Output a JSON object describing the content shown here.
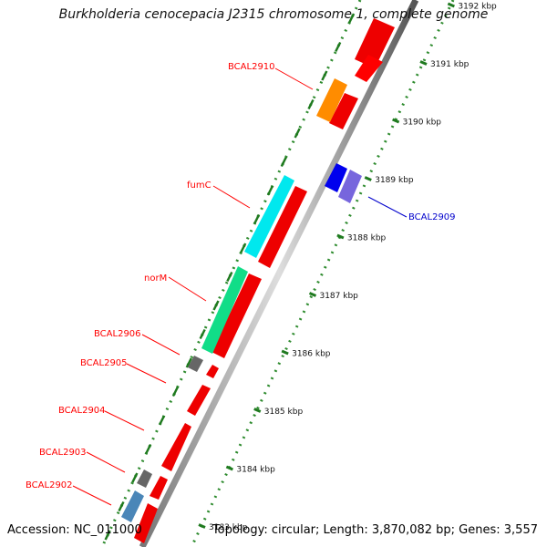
{
  "title": "Burkholderia cenocepacia J2315 chromosome 1, complete genome",
  "footer": {
    "accession": "Accession: NC_011000",
    "summary": "Topology: circular; Length: 3,870,082 bp; Genes: 3,557"
  },
  "ticks": [
    "3183 kbp",
    "3184 kbp",
    "3185 kbp",
    "3186 kbp",
    "3187 kbp",
    "3188 kbp",
    "3189 kbp",
    "3190 kbp",
    "3191 kbp",
    "3192 kbp"
  ],
  "genes": [
    {
      "name": "BCAL2910",
      "color": "#ff0000",
      "fill": "#ff8c00"
    },
    {
      "name": "fumC",
      "color": "#ff0000",
      "fill": "#00ffff"
    },
    {
      "name": "norM",
      "color": "#ff0000",
      "fill": "#00e080"
    },
    {
      "name": "BCAL2906",
      "color": "#ff0000",
      "fill": "#666666"
    },
    {
      "name": "BCAL2905",
      "color": "#ff0000",
      "fill": "#ff0000"
    },
    {
      "name": "BCAL2904",
      "color": "#ff0000",
      "fill": "#ff0000"
    },
    {
      "name": "BCAL2903",
      "color": "#ff0000",
      "fill": "#666666"
    },
    {
      "name": "BCAL2902",
      "color": "#ff0000",
      "fill": "#4682b4"
    },
    {
      "name": "BCAL2909",
      "color": "#0000cc",
      "fill": "#0000ee"
    }
  ]
}
